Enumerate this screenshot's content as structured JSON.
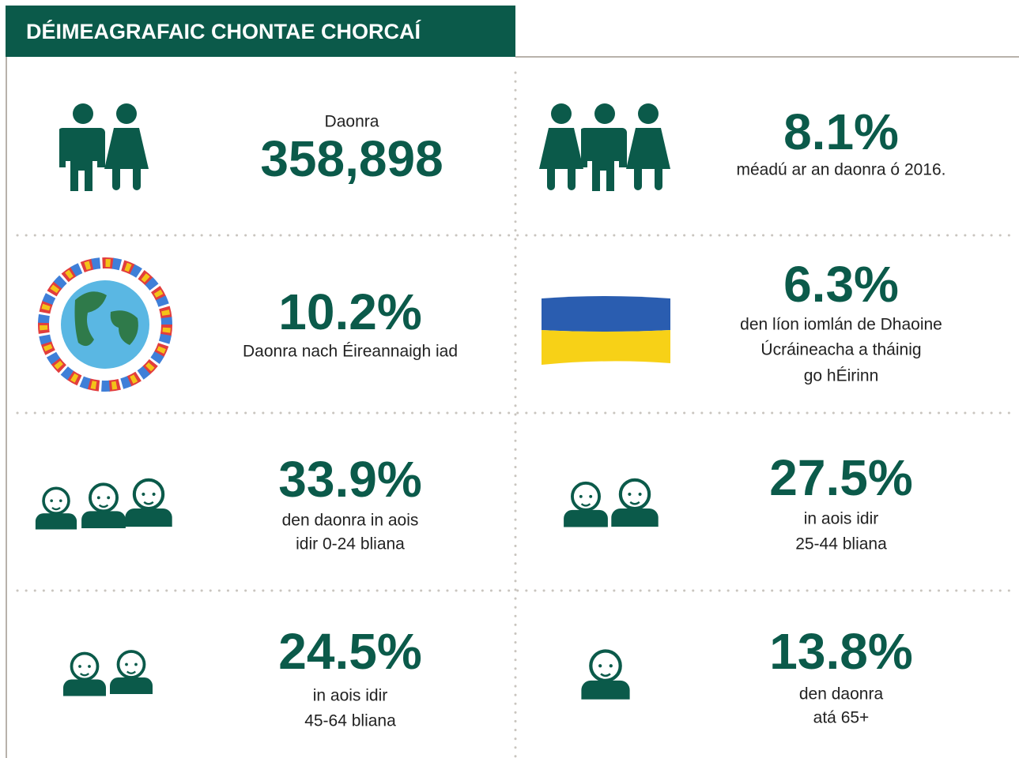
{
  "header": {
    "title": "DÉIMEAGRAFAIC CHONTAE CHORCAÍ"
  },
  "cells": [
    {
      "label": "Daonra",
      "stat": "358,898"
    },
    {
      "stat": "8.1%",
      "caption": [
        "méadú ar an daonra ó 2016."
      ]
    },
    {
      "stat": "10.2%",
      "caption": [
        "Daonra nach Éireannaigh iad"
      ]
    },
    {
      "stat": "6.3%",
      "caption": [
        "den líon iomlán de Dhaoine",
        "Úcráineacha a tháinig",
        "go hÉirinn"
      ]
    },
    {
      "stat": "33.9%",
      "caption": [
        "den daonra in aois",
        "idir 0-24 bliana"
      ]
    },
    {
      "stat": "27.5%",
      "caption": [
        "in aois idir",
        "25-44 bliana"
      ]
    },
    {
      "stat": "24.5%",
      "caption": [
        "in aois idir",
        "45-64 bliana"
      ]
    },
    {
      "stat": "13.8%",
      "caption": [
        "den daonra",
        "atá 65+"
      ]
    }
  ]
}
